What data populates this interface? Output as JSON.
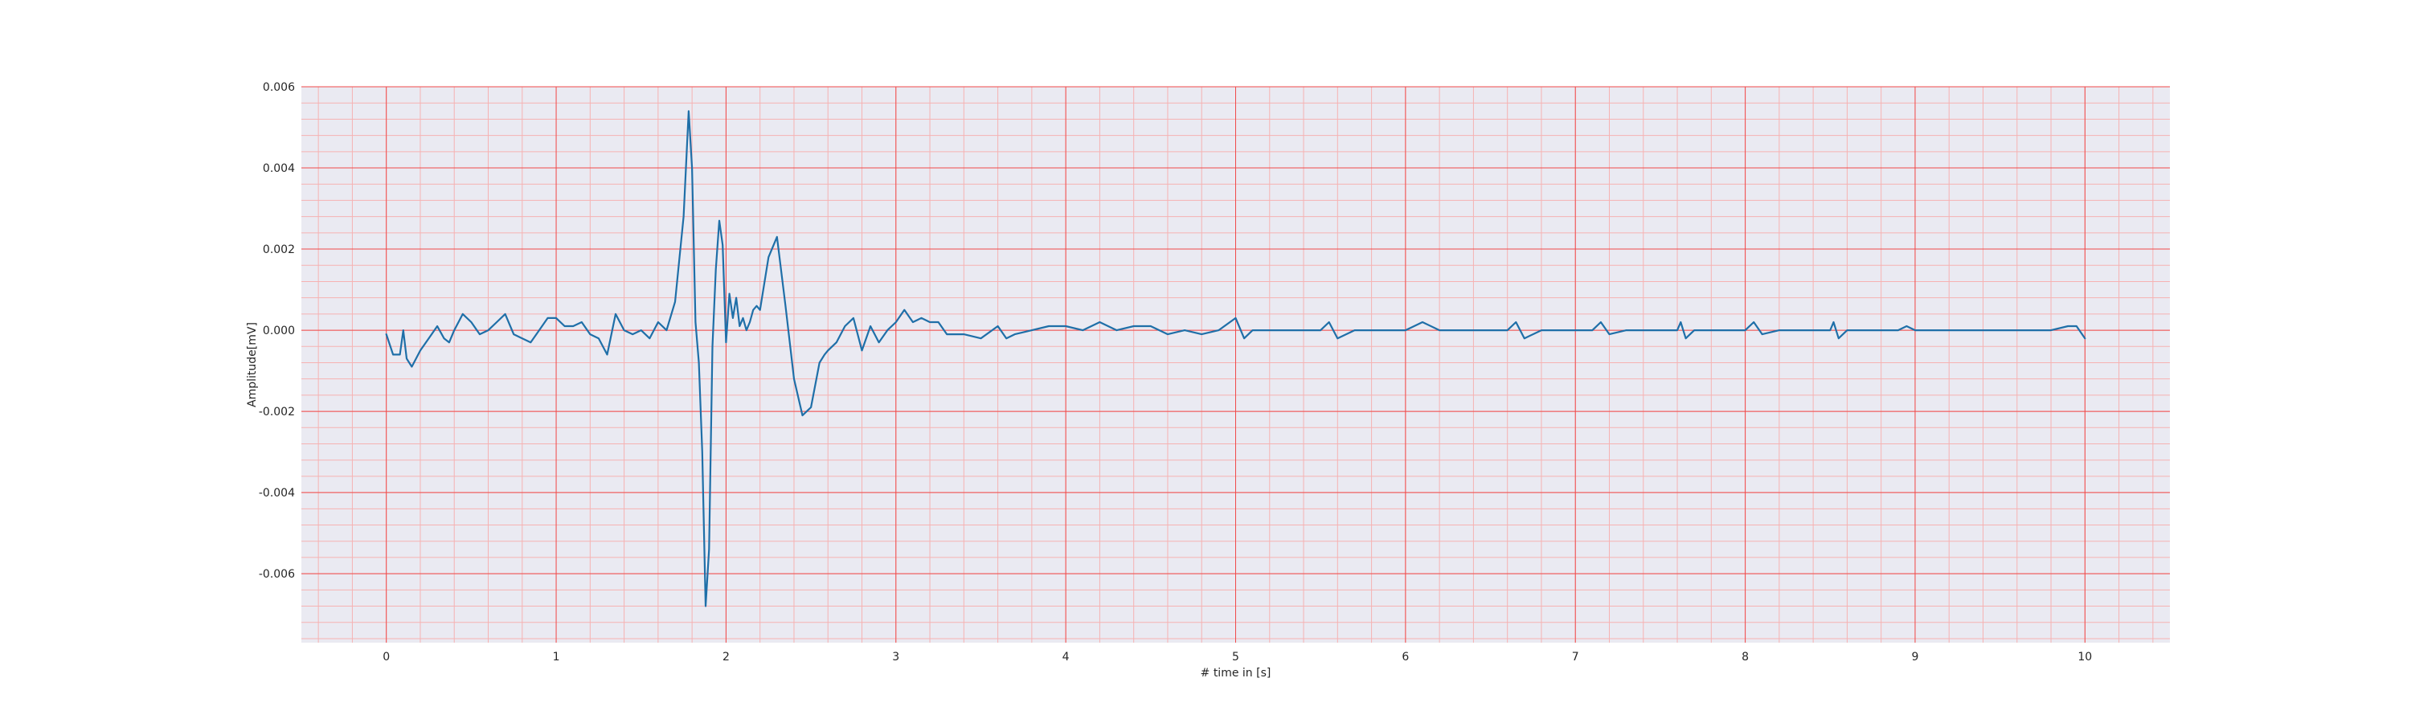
{
  "chart_data": {
    "type": "line",
    "title": "",
    "xlabel": "# time in [s]",
    "ylabel": "Amplitude[mV]",
    "xlim": [
      -0.5,
      10.5
    ],
    "ylim": [
      -0.0077,
      0.006
    ],
    "x_ticks": [
      0,
      1,
      2,
      3,
      4,
      5,
      6,
      7,
      8,
      9,
      10
    ],
    "x_tick_labels": [
      "0",
      "1",
      "2",
      "3",
      "4",
      "5",
      "6",
      "7",
      "8",
      "9",
      "10"
    ],
    "y_ticks": [
      0.006,
      0.004,
      0.002,
      0.0,
      -0.002,
      -0.004,
      -0.006
    ],
    "y_tick_labels": [
      "0.006",
      "0.004",
      "0.002",
      "0.000",
      "-0.002",
      "-0.004",
      "-0.006"
    ],
    "grid": true,
    "colors": {
      "line": "#1f6fa8",
      "background": "#eaeaf2",
      "major_grid": "#f04a4a",
      "minor_grid": "#f6b2b2"
    },
    "series": [
      {
        "x": [
          0.0,
          0.04,
          0.08,
          0.1,
          0.12,
          0.15,
          0.2,
          0.25,
          0.3,
          0.34,
          0.37,
          0.4,
          0.45,
          0.5,
          0.55,
          0.6,
          0.65,
          0.7,
          0.75,
          0.8,
          0.85,
          0.9,
          0.95,
          1.0,
          1.05,
          1.1,
          1.15,
          1.2,
          1.25,
          1.3,
          1.35,
          1.4,
          1.45,
          1.5,
          1.55,
          1.6,
          1.65,
          1.7,
          1.75,
          1.78,
          1.8,
          1.82,
          1.84,
          1.86,
          1.88,
          1.9,
          1.92,
          1.94,
          1.96,
          1.98,
          2.0,
          2.02,
          2.04,
          2.06,
          2.08,
          2.1,
          2.12,
          2.14,
          2.16,
          2.18,
          2.2,
          2.25,
          2.3,
          2.35,
          2.4,
          2.45,
          2.5,
          2.55,
          2.58,
          2.6,
          2.65,
          2.7,
          2.75,
          2.8,
          2.85,
          2.9,
          2.95,
          3.0,
          3.05,
          3.1,
          3.15,
          3.2,
          3.25,
          3.3,
          3.4,
          3.5,
          3.6,
          3.65,
          3.7,
          3.8,
          3.9,
          4.0,
          4.1,
          4.2,
          4.3,
          4.4,
          4.5,
          4.6,
          4.7,
          4.8,
          4.9,
          5.0,
          5.05,
          5.1,
          5.2,
          5.3,
          5.4,
          5.5,
          5.55,
          5.6,
          5.7,
          5.8,
          5.9,
          6.0,
          6.1,
          6.2,
          6.3,
          6.4,
          6.5,
          6.6,
          6.65,
          6.7,
          6.8,
          6.9,
          7.0,
          7.1,
          7.15,
          7.2,
          7.3,
          7.4,
          7.5,
          7.6,
          7.62,
          7.65,
          7.7,
          7.8,
          7.9,
          8.0,
          8.05,
          8.1,
          8.2,
          8.3,
          8.4,
          8.5,
          8.52,
          8.55,
          8.6,
          8.7,
          8.8,
          8.9,
          8.95,
          9.0,
          9.1,
          9.2,
          9.3,
          9.4,
          9.5,
          9.6,
          9.7,
          9.8,
          9.9,
          9.95,
          10.0
        ],
        "y": [
          -0.0001,
          -0.0006,
          -0.0006,
          0.0,
          -0.0007,
          -0.0009,
          -0.0005,
          -0.0002,
          0.0001,
          -0.0002,
          -0.0003,
          0.0,
          0.0004,
          0.0002,
          -0.0001,
          0.0,
          0.0002,
          0.0004,
          -0.0001,
          -0.0002,
          -0.0003,
          0.0,
          0.0003,
          0.0003,
          0.0001,
          0.0001,
          0.0002,
          -0.0001,
          -0.0002,
          -0.0006,
          0.0004,
          0.0,
          -0.0001,
          0.0,
          -0.0002,
          0.0002,
          0.0,
          0.0007,
          0.0028,
          0.0054,
          0.004,
          0.0002,
          -0.0008,
          -0.003,
          -0.0068,
          -0.0054,
          -0.0004,
          0.0015,
          0.0027,
          0.0021,
          -0.0003,
          0.0009,
          0.0003,
          0.0008,
          0.0001,
          0.0003,
          0.0,
          0.0002,
          0.0005,
          0.0006,
          0.0005,
          0.0018,
          0.0023,
          0.0006,
          -0.0012,
          -0.0021,
          -0.0019,
          -0.0008,
          -0.0006,
          -0.0005,
          -0.0003,
          0.0001,
          0.0003,
          -0.0005,
          0.0001,
          -0.0003,
          0.0,
          0.0002,
          0.0005,
          0.0002,
          0.0003,
          0.0002,
          0.0002,
          -0.0001,
          -0.0001,
          -0.0002,
          0.0001,
          -0.0002,
          -0.0001,
          0.0,
          0.0001,
          0.0001,
          0.0,
          0.0002,
          0.0,
          0.0001,
          0.0001,
          -0.0001,
          0.0,
          -0.0001,
          0.0,
          0.0003,
          -0.0002,
          0.0,
          0.0,
          0.0,
          0.0,
          0.0,
          0.0002,
          -0.0002,
          0.0,
          0.0,
          0.0,
          0.0,
          0.0002,
          0.0,
          0.0,
          0.0,
          0.0,
          0.0,
          0.0002,
          -0.0002,
          0.0,
          0.0,
          0.0,
          0.0,
          0.0002,
          -0.0001,
          0.0,
          0.0,
          0.0,
          0.0,
          0.0002,
          -0.0002,
          0.0,
          0.0,
          0.0,
          0.0,
          0.0002,
          -0.0001,
          0.0,
          0.0,
          0.0,
          0.0,
          0.0002,
          -0.0002,
          0.0,
          0.0,
          0.0,
          0.0,
          0.0001,
          0.0,
          0.0,
          0.0,
          0.0,
          0.0,
          0.0,
          0.0,
          0.0,
          0.0,
          0.0001,
          0.0001,
          -0.0002
        ]
      }
    ]
  }
}
